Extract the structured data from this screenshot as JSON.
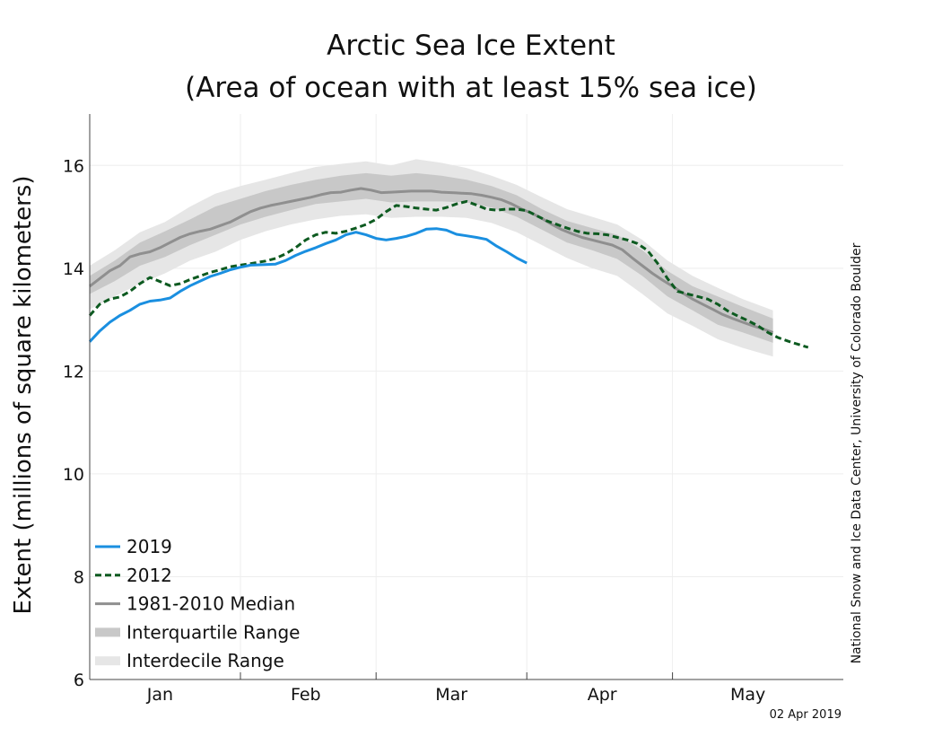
{
  "chart_data": {
    "type": "line",
    "title_lines": [
      "Arctic Sea Ice Extent",
      "(Area of ocean with at least 15% sea ice)"
    ],
    "ylabel": "Extent (millions of square kilometers)",
    "xlabel": "",
    "ylim": [
      6,
      17
    ],
    "yticks": [
      6,
      8,
      10,
      12,
      14,
      16
    ],
    "xlim": [
      0,
      150
    ],
    "month_labels": [
      {
        "label": "Jan",
        "day": 14
      },
      {
        "label": "Feb",
        "day": 43
      },
      {
        "label": "Mar",
        "day": 72
      },
      {
        "label": "Apr",
        "day": 102
      },
      {
        "label": "May",
        "day": 131
      }
    ],
    "month_boundaries": [
      30,
      57,
      87,
      116
    ],
    "grid": true,
    "legend_position": "bottom-left",
    "series": [
      {
        "name": "2019",
        "color": "#1a8fe0",
        "style": "solid",
        "points": [
          [
            0,
            12.57
          ],
          [
            2,
            12.78
          ],
          [
            4,
            12.95
          ],
          [
            6,
            13.08
          ],
          [
            8,
            13.18
          ],
          [
            10,
            13.3
          ],
          [
            12,
            13.36
          ],
          [
            14,
            13.38
          ],
          [
            16,
            13.42
          ],
          [
            18,
            13.55
          ],
          [
            20,
            13.66
          ],
          [
            22,
            13.75
          ],
          [
            24,
            13.84
          ],
          [
            26,
            13.9
          ],
          [
            28,
            13.97
          ],
          [
            30,
            14.02
          ],
          [
            32,
            14.06
          ],
          [
            35,
            14.07
          ],
          [
            37,
            14.08
          ],
          [
            39,
            14.15
          ],
          [
            41,
            14.25
          ],
          [
            43,
            14.33
          ],
          [
            45,
            14.4
          ],
          [
            47,
            14.48
          ],
          [
            49,
            14.55
          ],
          [
            51,
            14.65
          ],
          [
            53,
            14.7
          ],
          [
            55,
            14.65
          ],
          [
            57,
            14.58
          ],
          [
            59,
            14.55
          ],
          [
            61,
            14.58
          ],
          [
            63,
            14.62
          ],
          [
            65,
            14.68
          ],
          [
            67,
            14.76
          ],
          [
            69,
            14.77
          ],
          [
            71,
            14.74
          ],
          [
            73,
            14.66
          ],
          [
            75,
            14.63
          ],
          [
            77,
            14.6
          ],
          [
            79,
            14.56
          ],
          [
            81,
            14.43
          ],
          [
            83,
            14.32
          ],
          [
            85,
            14.2
          ],
          [
            87,
            14.1
          ]
        ]
      },
      {
        "name": "2012",
        "color": "#0d5a20",
        "style": "dashed",
        "points": [
          [
            0,
            13.08
          ],
          [
            2,
            13.3
          ],
          [
            4,
            13.4
          ],
          [
            6,
            13.44
          ],
          [
            8,
            13.55
          ],
          [
            10,
            13.7
          ],
          [
            12,
            13.82
          ],
          [
            14,
            13.74
          ],
          [
            16,
            13.66
          ],
          [
            18,
            13.7
          ],
          [
            20,
            13.78
          ],
          [
            22,
            13.85
          ],
          [
            24,
            13.92
          ],
          [
            26,
            13.97
          ],
          [
            28,
            14.03
          ],
          [
            30,
            14.06
          ],
          [
            32,
            14.09
          ],
          [
            35,
            14.14
          ],
          [
            37,
            14.19
          ],
          [
            39,
            14.28
          ],
          [
            41,
            14.4
          ],
          [
            43,
            14.55
          ],
          [
            45,
            14.65
          ],
          [
            47,
            14.7
          ],
          [
            49,
            14.68
          ],
          [
            51,
            14.72
          ],
          [
            53,
            14.78
          ],
          [
            55,
            14.85
          ],
          [
            57,
            14.95
          ],
          [
            59,
            15.1
          ],
          [
            61,
            15.22
          ],
          [
            63,
            15.2
          ],
          [
            65,
            15.17
          ],
          [
            67,
            15.15
          ],
          [
            69,
            15.13
          ],
          [
            71,
            15.18
          ],
          [
            73,
            15.25
          ],
          [
            75,
            15.3
          ],
          [
            77,
            15.23
          ],
          [
            79,
            15.15
          ],
          [
            81,
            15.13
          ],
          [
            83,
            15.15
          ],
          [
            85,
            15.15
          ],
          [
            87,
            15.12
          ],
          [
            89,
            15.02
          ],
          [
            91,
            14.92
          ],
          [
            93,
            14.85
          ],
          [
            95,
            14.78
          ],
          [
            97,
            14.72
          ],
          [
            99,
            14.68
          ],
          [
            101,
            14.67
          ],
          [
            103,
            14.65
          ],
          [
            105,
            14.6
          ],
          [
            107,
            14.55
          ],
          [
            109,
            14.48
          ],
          [
            111,
            14.35
          ],
          [
            113,
            14.1
          ],
          [
            115,
            13.8
          ],
          [
            117,
            13.55
          ],
          [
            119,
            13.5
          ],
          [
            121,
            13.45
          ],
          [
            123,
            13.4
          ],
          [
            125,
            13.3
          ],
          [
            127,
            13.17
          ],
          [
            129,
            13.07
          ],
          [
            131,
            12.98
          ],
          [
            133,
            12.88
          ],
          [
            135,
            12.75
          ],
          [
            137,
            12.65
          ],
          [
            139,
            12.58
          ],
          [
            141,
            12.52
          ],
          [
            143,
            12.46
          ]
        ]
      },
      {
        "name": "1981-2010 Median",
        "color": "#8f8f8f",
        "style": "solid",
        "points": [
          [
            0,
            13.65
          ],
          [
            2,
            13.8
          ],
          [
            4,
            13.95
          ],
          [
            6,
            14.05
          ],
          [
            8,
            14.22
          ],
          [
            10,
            14.28
          ],
          [
            12,
            14.32
          ],
          [
            14,
            14.4
          ],
          [
            16,
            14.5
          ],
          [
            18,
            14.6
          ],
          [
            20,
            14.67
          ],
          [
            22,
            14.72
          ],
          [
            24,
            14.76
          ],
          [
            26,
            14.83
          ],
          [
            28,
            14.9
          ],
          [
            30,
            15.0
          ],
          [
            32,
            15.1
          ],
          [
            34,
            15.17
          ],
          [
            36,
            15.22
          ],
          [
            38,
            15.26
          ],
          [
            40,
            15.3
          ],
          [
            42,
            15.34
          ],
          [
            44,
            15.38
          ],
          [
            46,
            15.43
          ],
          [
            48,
            15.47
          ],
          [
            50,
            15.48
          ],
          [
            52,
            15.52
          ],
          [
            54,
            15.55
          ],
          [
            56,
            15.52
          ],
          [
            58,
            15.47
          ],
          [
            60,
            15.48
          ],
          [
            62,
            15.49
          ],
          [
            64,
            15.5
          ],
          [
            66,
            15.5
          ],
          [
            68,
            15.5
          ],
          [
            70,
            15.48
          ],
          [
            72,
            15.47
          ],
          [
            74,
            15.46
          ],
          [
            76,
            15.45
          ],
          [
            78,
            15.42
          ],
          [
            80,
            15.38
          ],
          [
            82,
            15.33
          ],
          [
            84,
            15.25
          ],
          [
            86,
            15.15
          ],
          [
            88,
            15.07
          ],
          [
            90,
            14.97
          ],
          [
            92,
            14.85
          ],
          [
            94,
            14.75
          ],
          [
            96,
            14.67
          ],
          [
            98,
            14.6
          ],
          [
            100,
            14.55
          ],
          [
            102,
            14.5
          ],
          [
            104,
            14.45
          ],
          [
            106,
            14.36
          ],
          [
            108,
            14.2
          ],
          [
            110,
            14.05
          ],
          [
            112,
            13.9
          ],
          [
            114,
            13.77
          ],
          [
            116,
            13.65
          ],
          [
            118,
            13.52
          ],
          [
            120,
            13.4
          ],
          [
            122,
            13.3
          ],
          [
            124,
            13.2
          ],
          [
            126,
            13.1
          ],
          [
            128,
            13.02
          ],
          [
            130,
            12.95
          ],
          [
            132,
            12.88
          ],
          [
            134,
            12.82
          ],
          [
            136,
            12.75
          ]
        ]
      },
      {
        "name": "Interquartile Range",
        "color": "#c8c8c8",
        "style": "band",
        "points": [
          [
            0,
            13.5,
            13.85
          ],
          [
            5,
            13.75,
            14.15
          ],
          [
            10,
            14.05,
            14.5
          ],
          [
            15,
            14.22,
            14.72
          ],
          [
            20,
            14.45,
            14.95
          ],
          [
            25,
            14.65,
            15.2
          ],
          [
            30,
            14.85,
            15.35
          ],
          [
            35,
            15.0,
            15.5
          ],
          [
            40,
            15.13,
            15.62
          ],
          [
            45,
            15.25,
            15.72
          ],
          [
            50,
            15.3,
            15.8
          ],
          [
            55,
            15.35,
            15.85
          ],
          [
            60,
            15.28,
            15.8
          ],
          [
            65,
            15.3,
            15.85
          ],
          [
            70,
            15.3,
            15.8
          ],
          [
            75,
            15.28,
            15.72
          ],
          [
            80,
            15.18,
            15.6
          ],
          [
            85,
            15.0,
            15.42
          ],
          [
            90,
            14.75,
            15.15
          ],
          [
            95,
            14.5,
            14.92
          ],
          [
            100,
            14.35,
            14.78
          ],
          [
            105,
            14.18,
            14.65
          ],
          [
            110,
            13.85,
            14.35
          ],
          [
            115,
            13.45,
            13.95
          ],
          [
            120,
            13.18,
            13.65
          ],
          [
            125,
            12.9,
            13.45
          ],
          [
            130,
            12.75,
            13.25
          ],
          [
            136,
            12.55,
            13.02
          ]
        ]
      },
      {
        "name": "Interdecile Range",
        "color": "#e6e6e6",
        "style": "band",
        "points": [
          [
            0,
            13.2,
            14.05
          ],
          [
            5,
            13.45,
            14.35
          ],
          [
            10,
            13.7,
            14.7
          ],
          [
            15,
            13.9,
            14.9
          ],
          [
            20,
            14.15,
            15.2
          ],
          [
            25,
            14.32,
            15.45
          ],
          [
            30,
            14.55,
            15.6
          ],
          [
            35,
            14.72,
            15.72
          ],
          [
            40,
            14.85,
            15.85
          ],
          [
            45,
            14.95,
            15.97
          ],
          [
            50,
            15.02,
            16.03
          ],
          [
            55,
            15.05,
            16.08
          ],
          [
            60,
            14.98,
            16.0
          ],
          [
            65,
            15.0,
            16.12
          ],
          [
            70,
            15.0,
            16.05
          ],
          [
            75,
            14.98,
            15.95
          ],
          [
            80,
            14.88,
            15.8
          ],
          [
            85,
            14.7,
            15.62
          ],
          [
            90,
            14.45,
            15.38
          ],
          [
            95,
            14.2,
            15.15
          ],
          [
            100,
            14.0,
            15.0
          ],
          [
            105,
            13.85,
            14.85
          ],
          [
            110,
            13.5,
            14.55
          ],
          [
            115,
            13.12,
            14.15
          ],
          [
            120,
            12.88,
            13.85
          ],
          [
            125,
            12.62,
            13.62
          ],
          [
            130,
            12.45,
            13.4
          ],
          [
            136,
            12.28,
            13.18
          ]
        ]
      }
    ],
    "legend": [
      {
        "label": "2019",
        "style": "solid",
        "color": "#1a8fe0"
      },
      {
        "label": "2012",
        "style": "dashed",
        "color": "#0d5a20"
      },
      {
        "label": "1981-2010 Median",
        "style": "solid",
        "color": "#8f8f8f"
      },
      {
        "label": "Interquartile Range",
        "style": "band",
        "color": "#c8c8c8"
      },
      {
        "label": "Interdecile Range",
        "style": "band",
        "color": "#e6e6e6"
      }
    ],
    "credit": "National Snow and Ice Data Center, University of Colorado Boulder",
    "date_stamp": "02 Apr 2019"
  }
}
